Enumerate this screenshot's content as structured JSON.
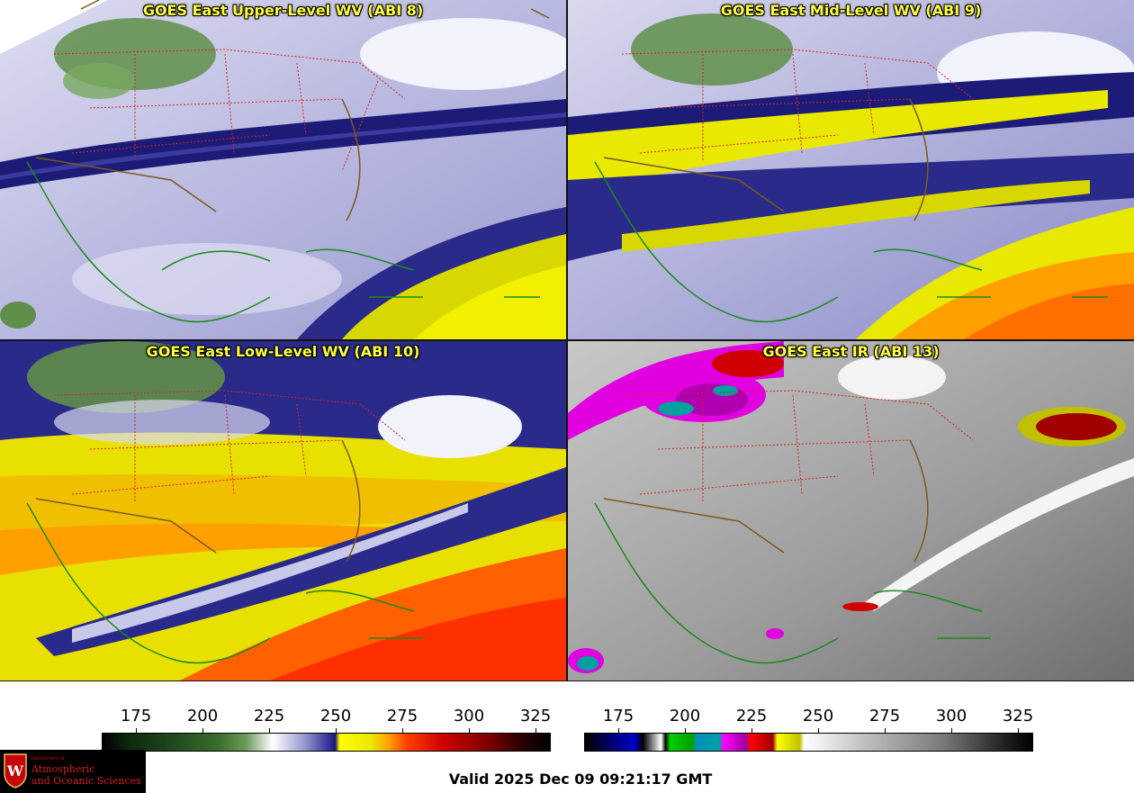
{
  "panels": [
    {
      "id": "p1",
      "title": "GOES East Upper-Level WV (ABI 8)",
      "style": "wv-upper"
    },
    {
      "id": "p2",
      "title": "GOES East Mid-Level WV (ABI 9)",
      "style": "wv-mid"
    },
    {
      "id": "p3",
      "title": "GOES East Low-Level WV (ABI 10)",
      "style": "wv-low"
    },
    {
      "id": "p4",
      "title": "GOES East IR (ABI 13)",
      "style": "ir"
    }
  ],
  "colorbars": {
    "wv": {
      "ticks": [
        "175",
        "200",
        "225",
        "250",
        "275",
        "300",
        "325"
      ]
    },
    "ir": {
      "ticks": [
        "175",
        "200",
        "225",
        "250",
        "275",
        "300",
        "325"
      ]
    }
  },
  "valid_time": "Valid 2025 Dec 09 09:21:17 GMT",
  "logo": {
    "department_label": "Department of",
    "line1": "Atmospheric",
    "line2": "and Oceanic Sciences",
    "crest_letter": "W"
  },
  "colors": {
    "state_borders": "#e02020",
    "coastlines": "#1a8a1a",
    "country_borders": "#7a5a1a",
    "title_text": "#ffff40"
  }
}
